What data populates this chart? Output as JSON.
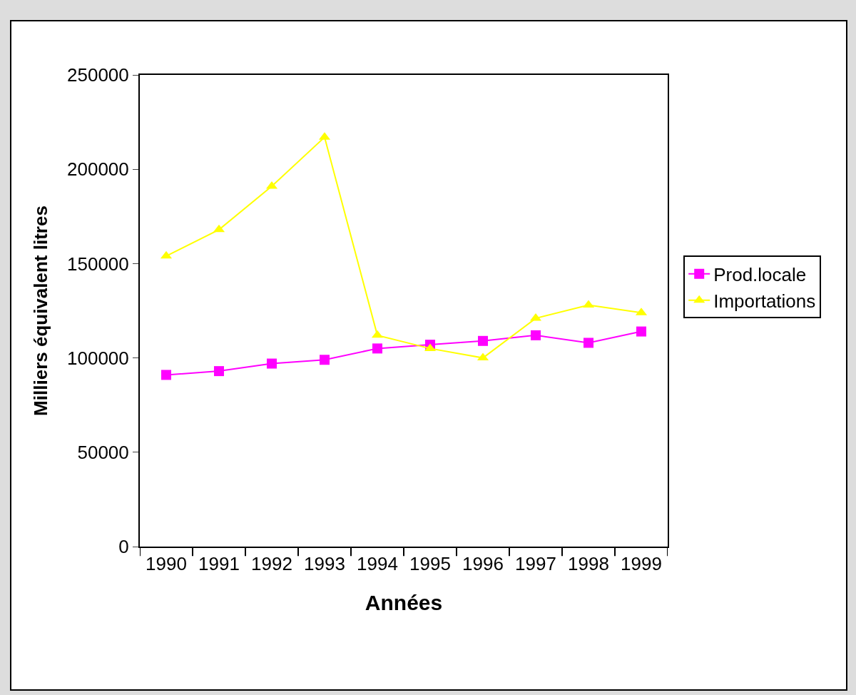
{
  "chart_data": {
    "type": "line",
    "xlabel": "Années",
    "ylabel": "Milliers équivalent litres",
    "categories": [
      "1990",
      "1991",
      "1992",
      "1993",
      "1994",
      "1995",
      "1996",
      "1997",
      "1998",
      "1999"
    ],
    "series": [
      {
        "name": "Prod.locale",
        "color": "#ff00ff",
        "marker": "square",
        "values": [
          91000,
          93000,
          97000,
          99000,
          105000,
          107000,
          109000,
          112000,
          108000,
          114000
        ]
      },
      {
        "name": "Importations",
        "color": "#ffff00",
        "marker": "triangle",
        "values": [
          154000,
          168000,
          191000,
          217000,
          112000,
          105000,
          100000,
          121000,
          128000,
          124000
        ]
      }
    ],
    "ylim": [
      0,
      250000
    ],
    "yticks": [
      0,
      50000,
      100000,
      150000,
      200000,
      250000
    ],
    "grid": false,
    "legend": "right",
    "line_style": "solid"
  }
}
